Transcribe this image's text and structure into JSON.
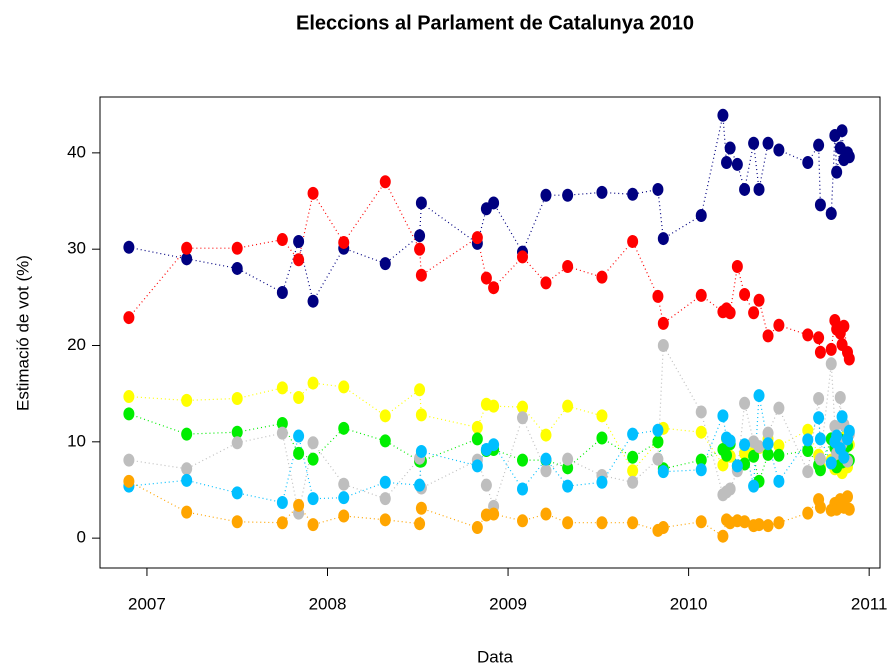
{
  "chart_data": {
    "type": "scatter",
    "title": "Eleccions al Parlament de Catalunya 2010",
    "x_label": "Data",
    "y_label": "Estimació de vot (%)",
    "xlim": [
      2006.74,
      2011.06
    ],
    "ylim": [
      -3.1,
      45.8
    ],
    "xticks": [
      2007,
      2008,
      2009,
      2010,
      2011
    ],
    "yticks": [
      0,
      10,
      20,
      30,
      40
    ],
    "connect": "dotted",
    "x": [
      2006.9,
      2007.22,
      2007.5,
      2007.75,
      2007.84,
      2007.92,
      2008.09,
      2008.32,
      2008.51,
      2008.52,
      2008.83,
      2008.88,
      2008.92,
      2009.08,
      2009.21,
      2009.33,
      2009.52,
      2009.69,
      2009.83,
      2009.86,
      2010.07,
      2010.19,
      2010.21,
      2010.23,
      2010.27,
      2010.31,
      2010.36,
      2010.39,
      2010.44,
      2010.5,
      2010.66,
      2010.72,
      2010.73,
      2010.79,
      2010.81,
      2010.82,
      2010.84,
      2010.85,
      2010.86,
      2010.88,
      2010.89
    ],
    "series": [
      {
        "color": "#000080",
        "values": [
          30.2,
          29.0,
          28.0,
          25.5,
          30.8,
          24.6,
          30.1,
          28.5,
          31.4,
          34.8,
          30.6,
          34.2,
          34.8,
          29.7,
          35.6,
          35.6,
          35.9,
          35.7,
          36.2,
          31.1,
          33.5,
          43.9,
          39.0,
          40.5,
          38.8,
          36.2,
          41.0,
          36.2,
          41.0,
          40.3,
          39.0,
          40.8,
          34.6,
          33.7,
          41.8,
          38.0,
          40.5,
          42.3,
          39.3,
          40.0,
          39.6
        ]
      },
      {
        "color": "#ff0000",
        "values": [
          22.9,
          30.1,
          30.1,
          31.0,
          28.9,
          35.8,
          30.7,
          37.0,
          30.0,
          27.3,
          31.2,
          27.0,
          26.0,
          29.2,
          26.5,
          28.2,
          27.1,
          30.8,
          25.1,
          22.3,
          25.2,
          23.5,
          23.8,
          23.4,
          28.2,
          25.3,
          23.4,
          24.7,
          21.0,
          22.1,
          21.1,
          20.8,
          19.3,
          19.6,
          22.6,
          21.7,
          21.3,
          20.1,
          22.0,
          19.3,
          18.6
        ]
      },
      {
        "color": "#ffff00",
        "values": [
          14.7,
          14.3,
          14.5,
          15.6,
          14.6,
          16.1,
          15.7,
          12.7,
          15.4,
          12.8,
          11.5,
          13.9,
          13.7,
          13.6,
          10.7,
          13.7,
          12.7,
          7.0,
          10.0,
          11.4,
          11.0,
          7.6,
          10.3,
          8.5,
          7.2,
          8.8,
          8.9,
          9.4,
          10.3,
          9.6,
          11.2,
          8.6,
          7.4,
          8.1,
          7.2,
          9.0,
          9.1,
          6.8,
          10.4,
          7.4,
          9.7
        ]
      },
      {
        "color": "#00ee00",
        "values": [
          12.9,
          10.8,
          11.0,
          11.9,
          8.8,
          8.2,
          11.4,
          10.1,
          8.0,
          8.0,
          10.3,
          9.1,
          9.2,
          8.1,
          8.1,
          7.3,
          10.4,
          8.4,
          10.0,
          7.2,
          8.1,
          9.2,
          8.6,
          9.8,
          7.5,
          7.7,
          8.5,
          5.9,
          8.7,
          8.6,
          9.1,
          7.6,
          7.1,
          10.3,
          9.4,
          7.4,
          10.2,
          7.9,
          9.4,
          9.6,
          8.1
        ]
      },
      {
        "color": "#bebebe",
        "values": [
          8.1,
          7.2,
          9.9,
          10.9,
          2.6,
          9.9,
          5.6,
          4.1,
          8.3,
          5.2,
          8.1,
          5.5,
          3.3,
          12.5,
          7.0,
          8.2,
          6.5,
          5.8,
          8.2,
          20.0,
          13.1,
          4.5,
          4.8,
          5.1,
          7.0,
          14.0,
          10.0,
          9.5,
          10.9,
          13.5,
          6.9,
          14.5,
          8.2,
          18.1,
          11.6,
          8.8,
          14.6,
          9.8,
          11.8,
          8.0,
          10.8
        ]
      },
      {
        "color": "#00bfff",
        "values": [
          5.4,
          6.0,
          4.7,
          3.7,
          10.6,
          4.1,
          4.2,
          5.8,
          5.5,
          9.0,
          7.5,
          9.2,
          9.7,
          5.1,
          8.2,
          5.4,
          5.8,
          10.8,
          11.2,
          6.9,
          7.1,
          12.7,
          10.4,
          10.1,
          7.5,
          9.7,
          5.4,
          14.8,
          9.8,
          5.9,
          10.2,
          12.5,
          10.3,
          7.8,
          10.0,
          10.6,
          9.3,
          12.6,
          8.4,
          10.3,
          11.1
        ]
      },
      {
        "color": "#ffa500",
        "values": [
          5.9,
          2.7,
          1.7,
          1.6,
          3.4,
          1.4,
          2.3,
          1.9,
          1.5,
          3.1,
          1.1,
          2.4,
          2.5,
          1.8,
          2.5,
          1.6,
          1.6,
          1.6,
          0.8,
          1.1,
          1.7,
          0.2,
          1.9,
          1.6,
          1.8,
          1.7,
          1.3,
          1.4,
          1.3,
          1.6,
          2.6,
          4.0,
          3.2,
          2.9,
          3.6,
          3.0,
          4.0,
          3.5,
          3.2,
          4.3,
          3.0
        ]
      }
    ]
  }
}
